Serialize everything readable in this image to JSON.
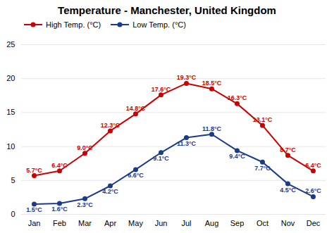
{
  "chart_data": {
    "type": "line",
    "title": "Temperature - Manchester, United Kingdom",
    "categories": [
      "Jan",
      "Feb",
      "Mar",
      "Apr",
      "May",
      "Jun",
      "Jul",
      "Aug",
      "Sep",
      "Oct",
      "Nov",
      "Dec"
    ],
    "series": [
      {
        "name": "High Temp. (°C)",
        "color": "#cc0000",
        "marker": "circle",
        "values": [
          5.7,
          6.4,
          9.0,
          12.3,
          14.8,
          17.6,
          19.3,
          18.5,
          16.3,
          13.1,
          8.7,
          6.4
        ],
        "value_labels": [
          "5.7°C",
          "6.4°C",
          "9.0°C",
          "12.3°C",
          "14.8°C",
          "17.6°C",
          "19.3°C",
          "18.5°C",
          "16.3°C",
          "13.1°C",
          "8.7°C",
          "6.4°C"
        ]
      },
      {
        "name": "Low Temp. (°C)",
        "color": "#1a3a8a",
        "marker": "circle",
        "values": [
          1.5,
          1.6,
          2.3,
          4.2,
          6.6,
          9.1,
          11.3,
          11.8,
          9.4,
          7.7,
          4.5,
          2.6
        ],
        "value_labels": [
          "1.5°C",
          "1.6°C",
          "2.3°C",
          "4.2°C",
          "6.6°C",
          "9.1°C",
          "11.3°C",
          "11.8°C",
          "9.4°C",
          "7.7°C",
          "4.5°C",
          "2.6°C"
        ]
      }
    ],
    "ylim": [
      0,
      25
    ],
    "yticks": [
      0,
      5,
      10,
      15,
      20,
      25
    ],
    "grid": true,
    "legend": "top left",
    "data_labels": true
  }
}
